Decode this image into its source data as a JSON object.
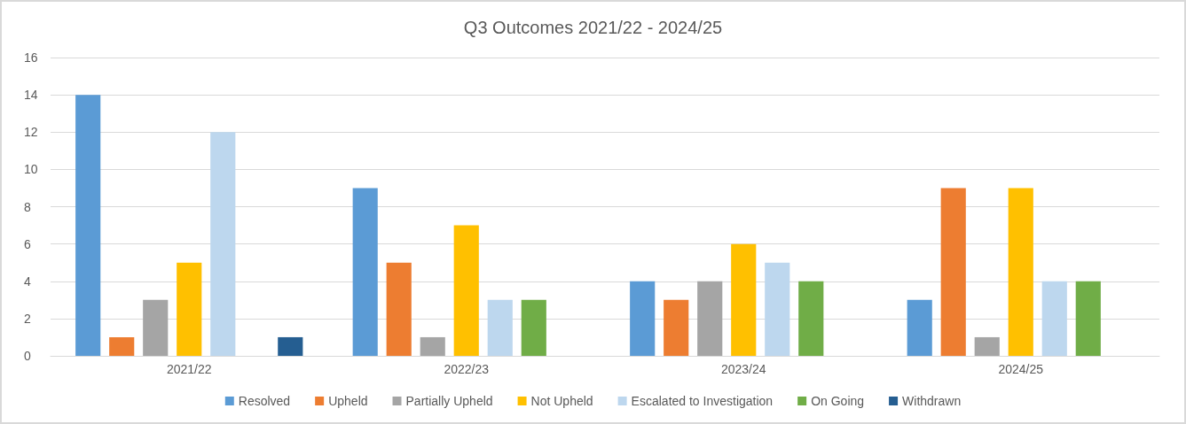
{
  "chart_data": {
    "type": "bar",
    "title": "Q3 Outcomes 2021/22 - 2024/25",
    "categories": [
      "2021/22",
      "2022/23",
      "2023/24",
      "2024/25"
    ],
    "series": [
      {
        "name": "Resolved",
        "color": "#5b9bd5",
        "values": [
          14,
          9,
          4,
          3
        ]
      },
      {
        "name": "Upheld",
        "color": "#ed7d31",
        "values": [
          1,
          5,
          3,
          9
        ]
      },
      {
        "name": "Partially Upheld",
        "color": "#a5a5a5",
        "values": [
          3,
          1,
          4,
          1
        ]
      },
      {
        "name": "Not Upheld",
        "color": "#ffc000",
        "values": [
          5,
          7,
          6,
          9
        ]
      },
      {
        "name": "Escalated to Investigation",
        "color": "#bdd7ee",
        "values": [
          12,
          3,
          5,
          4
        ]
      },
      {
        "name": "On Going",
        "color": "#70ad47",
        "values": [
          0,
          3,
          4,
          4
        ]
      },
      {
        "name": "Withdrawn",
        "color": "#255e91",
        "values": [
          1,
          0,
          0,
          0
        ]
      }
    ],
    "ylim": [
      0,
      16
    ],
    "yticks": [
      0,
      2,
      4,
      6,
      8,
      10,
      12,
      14,
      16
    ],
    "grid": "y",
    "legend": "bottom"
  }
}
